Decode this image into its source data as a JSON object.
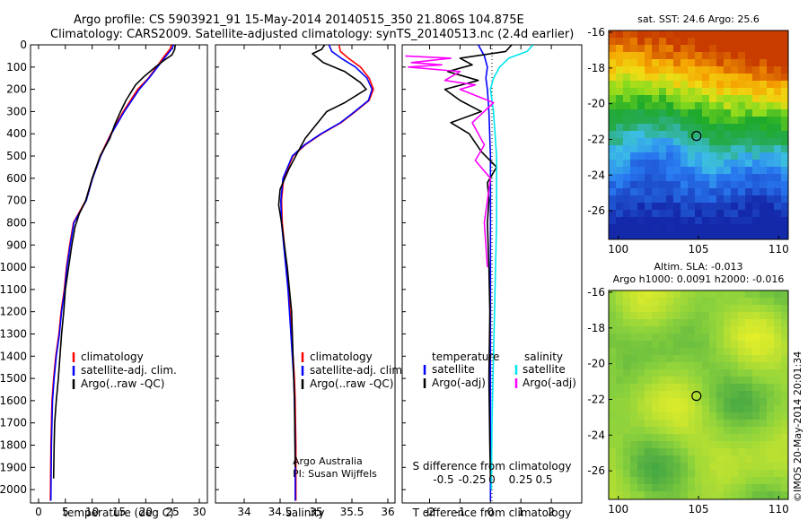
{
  "header": {
    "title_line1": "Argo profile: CS 5903921_91 15-May-2014 20140515_350 21.806S 104.875E",
    "title_line2": "Climatology: CARS2009. Satellite-adjusted climatology: synTS_20140513.nc (2.4d earlier)"
  },
  "colors": {
    "climatology": "#ff0000",
    "satellite": "#0000ff",
    "argo": "#000000",
    "sal_satellite": "#00e5ee",
    "sal_argo": "#ff00ff"
  },
  "chart_data": [
    {
      "id": "temperature",
      "type": "line",
      "xlabel": "temperature (deg C)",
      "xticks": [
        0,
        5,
        10,
        15,
        20,
        25,
        30
      ],
      "xlim": [
        -1.5,
        31.5
      ],
      "ylim": [
        0,
        2060
      ],
      "yreverse": true,
      "yticks": [
        0,
        100,
        200,
        300,
        400,
        500,
        600,
        700,
        800,
        900,
        1000,
        1100,
        1200,
        1300,
        1400,
        1500,
        1600,
        1700,
        1800,
        1900,
        2000
      ],
      "legend": [
        "climatology",
        "satellite-adj. clim.",
        "Argo(..raw -QC)"
      ],
      "series": [
        {
          "name": "climatology",
          "color": "#ff0000",
          "x": [
            24.8,
            24.5,
            23.5,
            22.0,
            20.5,
            18.5,
            15.8,
            13.5,
            11.5,
            10.0,
            8.8,
            6.5,
            5.8,
            5.2,
            4.8,
            4.2,
            3.8,
            3.2,
            2.8,
            2.5,
            2.3,
            2.2
          ],
          "y": [
            0,
            20,
            50,
            100,
            150,
            200,
            300,
            400,
            500,
            600,
            700,
            800,
            900,
            1000,
            1100,
            1200,
            1300,
            1400,
            1500,
            1600,
            1800,
            2050
          ]
        },
        {
          "name": "satellite-adj. clim.",
          "color": "#0000ff",
          "x": [
            25.2,
            24.8,
            23.8,
            22.2,
            20.6,
            18.8,
            16.0,
            13.6,
            11.6,
            10.1,
            8.9,
            6.6,
            5.9,
            5.3,
            4.9,
            4.3,
            3.9,
            3.3,
            2.9,
            2.6,
            2.4,
            2.3
          ],
          "y": [
            0,
            20,
            50,
            100,
            150,
            200,
            300,
            400,
            500,
            600,
            700,
            800,
            900,
            1000,
            1100,
            1200,
            1300,
            1400,
            1500,
            1600,
            1800,
            2050
          ]
        },
        {
          "name": "Argo(..raw -QC)",
          "color": "#000000",
          "x": [
            25.5,
            25.4,
            24.9,
            23.4,
            21.8,
            19.8,
            18.1,
            16.3,
            15.3,
            14.2,
            13.3,
            11.5,
            10.0,
            8.8,
            7.6,
            6.8,
            6.2,
            5.6,
            5.0,
            4.7,
            4.3,
            4.0,
            3.7,
            3.3,
            3.0,
            2.9,
            2.8
          ],
          "y": [
            0,
            20,
            45,
            70,
            100,
            140,
            180,
            250,
            300,
            360,
            420,
            500,
            600,
            700,
            760,
            820,
            900,
            1000,
            1100,
            1200,
            1300,
            1400,
            1500,
            1600,
            1700,
            1800,
            1950
          ]
        }
      ]
    },
    {
      "id": "salinity",
      "type": "line",
      "xlabel": "salinity",
      "xticks": [
        34,
        34.5,
        35,
        35.5,
        36
      ],
      "xlim": [
        33.6,
        36.1
      ],
      "ylim": [
        0,
        2060
      ],
      "yreverse": true,
      "legend": [
        "climatology",
        "satellite-adj. clim.",
        "Argo(..raw -QC)"
      ],
      "annotation": [
        "Argo Australia",
        "PI: Susan Wijffels"
      ],
      "series": [
        {
          "name": "climatology",
          "color": "#ff0000",
          "x": [
            35.32,
            35.34,
            35.45,
            35.62,
            35.74,
            35.8,
            35.74,
            35.55,
            35.35,
            35.08,
            34.85,
            34.68,
            34.55,
            34.52,
            34.53,
            34.56,
            34.59,
            34.62,
            34.64,
            34.66,
            34.68,
            34.7,
            34.71,
            34.72,
            34.72
          ],
          "y": [
            0,
            30,
            60,
            100,
            150,
            200,
            250,
            300,
            350,
            400,
            450,
            500,
            600,
            700,
            800,
            900,
            1000,
            1100,
            1200,
            1300,
            1400,
            1500,
            1600,
            1800,
            2050
          ]
        },
        {
          "name": "satellite-adj. clim.",
          "color": "#0000ff",
          "x": [
            35.18,
            35.22,
            35.35,
            35.55,
            35.71,
            35.78,
            35.73,
            35.54,
            35.34,
            35.07,
            34.84,
            34.67,
            34.54,
            34.51,
            34.52,
            34.55,
            34.58,
            34.61,
            34.63,
            34.65,
            34.67,
            34.69,
            34.7,
            34.71,
            34.71
          ],
          "y": [
            0,
            30,
            60,
            100,
            150,
            200,
            250,
            300,
            350,
            400,
            450,
            500,
            600,
            700,
            800,
            900,
            1000,
            1100,
            1200,
            1300,
            1400,
            1500,
            1600,
            1800,
            2050
          ]
        },
        {
          "name": "Argo(..raw -QC)",
          "color": "#000000",
          "x": [
            35.12,
            35.08,
            34.95,
            35.1,
            35.4,
            35.62,
            35.7,
            35.4,
            35.15,
            35.0,
            34.85,
            34.75,
            34.62,
            34.5,
            34.48,
            34.52,
            34.56,
            34.6,
            34.63,
            34.66,
            34.68,
            34.7,
            34.71
          ],
          "y": [
            0,
            20,
            40,
            80,
            120,
            170,
            200,
            260,
            300,
            360,
            420,
            480,
            560,
            650,
            720,
            800,
            900,
            1000,
            1100,
            1200,
            1400,
            1600,
            1900
          ]
        }
      ]
    },
    {
      "id": "differences",
      "type": "line",
      "xlabel": "T difference from climatology",
      "xlabel_top": "S difference from climatology",
      "xticks": [
        -2,
        -1,
        0,
        1,
        2
      ],
      "xticks_top": [
        "-0.5",
        "-0.25",
        "0",
        "0.25",
        "0.5"
      ],
      "xlim": [
        -2.9,
        3.0
      ],
      "ylim": [
        0,
        2060
      ],
      "yreverse": true,
      "legend_left": {
        "title": "temperature",
        "items": [
          "satellite",
          "Argo(-adj)"
        ]
      },
      "legend_right": {
        "title": "salinity",
        "items": [
          "satellite",
          "Argo(-adj)"
        ]
      },
      "series": [
        {
          "name": "temperature satellite",
          "color": "#0000ff",
          "x": [
            -0.4,
            -0.2,
            -0.1,
            -0.15,
            -0.1,
            -0.05,
            0,
            0
          ],
          "y": [
            0,
            50,
            100,
            150,
            200,
            300,
            500,
            2050
          ]
        },
        {
          "name": "temperature Argo(-adj)",
          "color": "#000000",
          "x": [
            0.7,
            0.5,
            -1.0,
            -0.6,
            -1.4,
            -0.4,
            -1.5,
            -1.0,
            -0.3,
            -1.3,
            -0.7,
            -0.3,
            0.2,
            -0.1,
            -0.05,
            -0.1,
            -0.05,
            -0.02,
            -0.05,
            -0.02,
            0
          ],
          "y": [
            0,
            30,
            60,
            90,
            120,
            160,
            200,
            250,
            300,
            350,
            400,
            480,
            550,
            620,
            700,
            800,
            1000,
            1200,
            1500,
            1800,
            1950
          ]
        },
        {
          "name": "salinity satellite",
          "color": "#00e5ee",
          "x": [
            1.4,
            1.2,
            0.6,
            0.3,
            0.1,
            0,
            0.1,
            0.2,
            0.2,
            0.15,
            0.1,
            0.05,
            0.03
          ],
          "y": [
            0,
            30,
            60,
            100,
            150,
            200,
            300,
            500,
            800,
            1100,
            1400,
            1700,
            2000
          ]
        },
        {
          "name": "salinity Argo(-adj)",
          "color": "#ff00ff",
          "x": [
            -2.8,
            -1.3,
            -2.6,
            -1.6,
            -2.7,
            -1.0,
            -1.5,
            -0.5,
            -1.0,
            0.1,
            -0.6,
            -0.2,
            -0.5,
            0,
            -0.2,
            -0.1
          ],
          "y": [
            50,
            60,
            80,
            90,
            100,
            120,
            160,
            180,
            200,
            260,
            350,
            450,
            520,
            600,
            800,
            1000
          ]
        }
      ]
    }
  ],
  "maps": [
    {
      "id": "sst-map",
      "title": "sat. SST: 24.6  Argo: 25.6",
      "xticks": [
        100,
        105,
        110
      ],
      "yticks": [
        -16,
        -18,
        -20,
        -22,
        -24,
        -26
      ],
      "xlim": [
        99.4,
        110.6
      ],
      "ylim": [
        -27.6,
        -15.9
      ],
      "marker": {
        "lon": 104.875,
        "lat": -21.806
      }
    },
    {
      "id": "sla-map",
      "title_line1": "Altim. SLA: -0.013",
      "title_line2": "Argo h1000: 0.0091  h2000: -0.016",
      "xticks": [
        100,
        105,
        110
      ],
      "yticks": [
        -16,
        -18,
        -20,
        -22,
        -24,
        -26
      ],
      "xlim": [
        99.4,
        110.6
      ],
      "ylim": [
        -27.6,
        -15.9
      ],
      "marker": {
        "lon": 104.875,
        "lat": -21.806
      }
    }
  ],
  "footer": {
    "credit": "©IMOS 20-May-2014 20:01:34"
  }
}
